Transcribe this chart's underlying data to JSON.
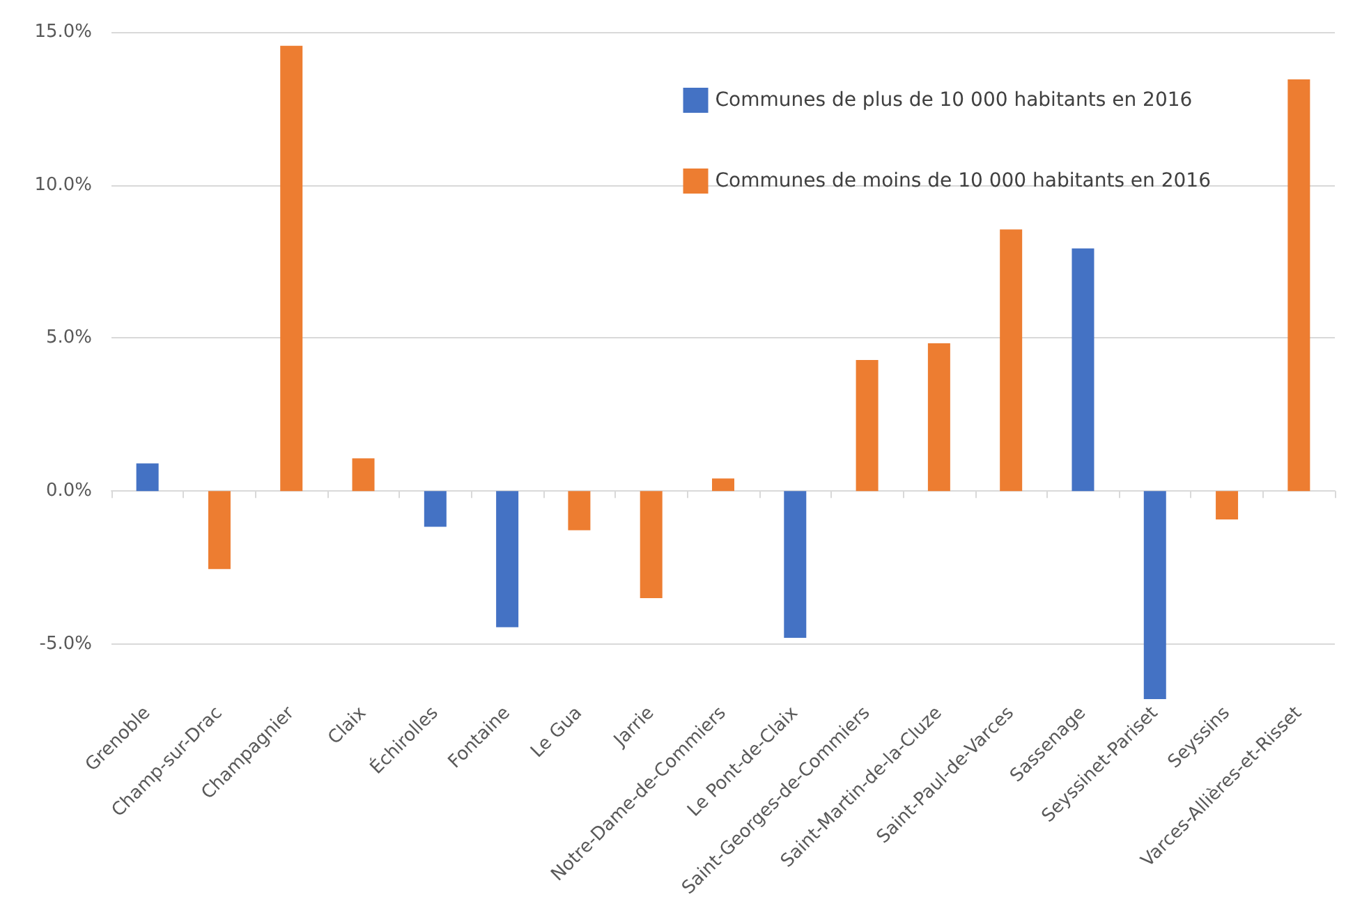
{
  "chart_data": {
    "type": "bar",
    "categories": [
      "Grenoble",
      "Champ-sur-Drac",
      "Champagnier",
      "Claix",
      "Échirolles",
      "Fontaine",
      "Le Gua",
      "Jarrie",
      "Notre-Dame-de-Commiers",
      "Le Pont-de-Claix",
      "Saint-Georges-de-Commiers",
      "Saint-Martin-de-la-Cluze",
      "Saint-Paul-de-Varces",
      "Sassenage",
      "Seyssinet-Pariset",
      "Seyssins",
      "Varces-Allières-et-Risset"
    ],
    "series": [
      {
        "name": "Communes de plus de 10 000 habitants en 2016",
        "color": "#4472c4",
        "values": [
          0.9,
          null,
          null,
          null,
          -1.17,
          -4.45,
          null,
          null,
          null,
          -4.8,
          null,
          null,
          null,
          7.93,
          -6.8,
          null,
          null
        ]
      },
      {
        "name": "Communes de moins de 10 000 habitants en 2016",
        "color": "#ed7d31",
        "values": [
          null,
          -2.55,
          14.55,
          1.07,
          null,
          null,
          -1.28,
          -3.5,
          0.41,
          null,
          4.28,
          4.83,
          8.55,
          null,
          null,
          -0.93,
          13.45
        ]
      }
    ],
    "ylim": [
      -6.8,
      15
    ],
    "yticks": [
      {
        "value": -5,
        "label": "-5.0%"
      },
      {
        "value": 0,
        "label": "0.0%"
      },
      {
        "value": 5,
        "label": "5.0%"
      },
      {
        "value": 10,
        "label": "10.0%"
      },
      {
        "value": 15,
        "label": "15.0%"
      }
    ],
    "grid": "y",
    "legend": "top right"
  }
}
